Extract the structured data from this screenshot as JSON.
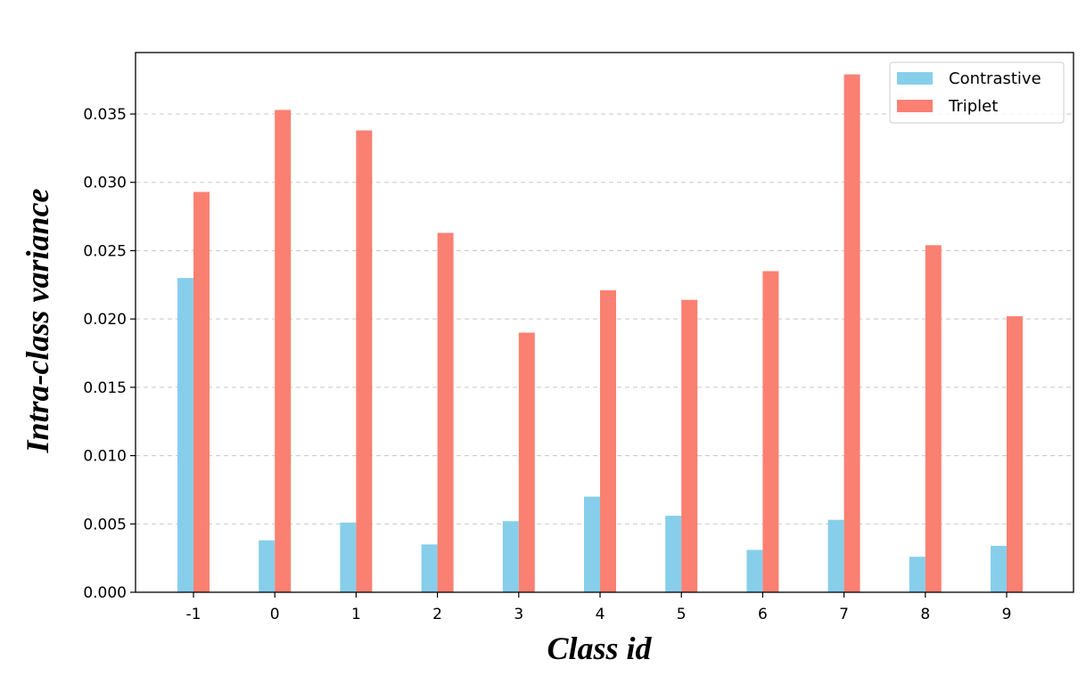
{
  "chart_data": {
    "type": "bar",
    "title": "",
    "xlabel": "Class id",
    "ylabel": "Intra-class variance",
    "categories": [
      "-1",
      "0",
      "1",
      "2",
      "3",
      "4",
      "5",
      "6",
      "7",
      "8",
      "9"
    ],
    "series": [
      {
        "name": "Contrastive",
        "color": "#87CEEB",
        "values": [
          0.023,
          0.0038,
          0.0051,
          0.0035,
          0.0052,
          0.007,
          0.0056,
          0.0031,
          0.0053,
          0.0026,
          0.0034
        ]
      },
      {
        "name": "Triplet",
        "color": "#FA8072",
        "values": [
          0.0293,
          0.0353,
          0.0338,
          0.0263,
          0.019,
          0.0221,
          0.0214,
          0.0235,
          0.0379,
          0.0254,
          0.0202
        ]
      }
    ],
    "ylim": [
      0,
      0.0395
    ],
    "yticks": [
      "0.000",
      "0.005",
      "0.010",
      "0.015",
      "0.020",
      "0.025",
      "0.030",
      "0.035"
    ],
    "grid": "horizontal dashed",
    "legend_position": "top-right"
  }
}
